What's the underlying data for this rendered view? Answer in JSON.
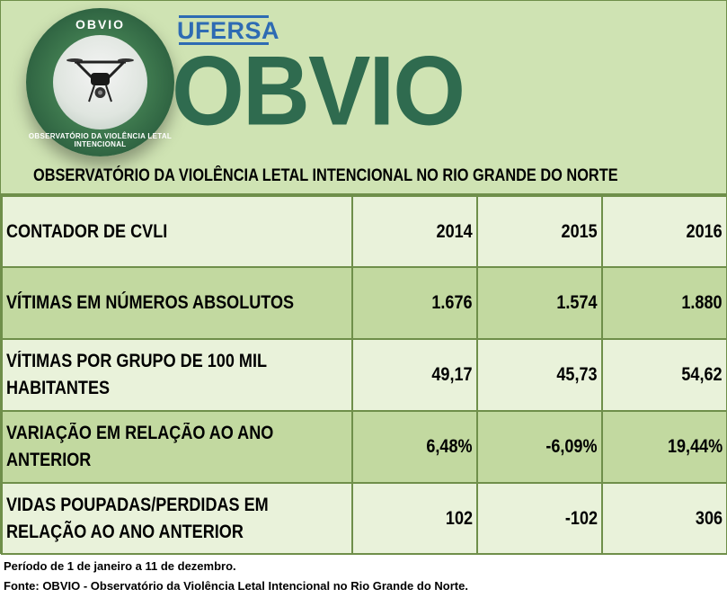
{
  "header": {
    "seal_top": "OBVIO",
    "seal_text": "OBSERVATÓRIO DA VIOLÊNCIA LETAL INTENCIONAL",
    "university": "UFERSA",
    "brand": "OBVIO",
    "subtitle": "OBSERVATÓRIO DA VIOLÊNCIA LETAL INTENCIONAL NO RIO GRANDE DO NORTE",
    "colors": {
      "background": "#cfe3b3",
      "brand": "#2f6b4f",
      "university": "#2e6bb3",
      "border": "#6f8f4a"
    }
  },
  "table": {
    "header": {
      "label": "CONTADOR DE CVLI",
      "years": [
        "2014",
        "2015",
        "2016"
      ]
    },
    "rows": [
      {
        "label": "VÍTIMAS EM NÚMEROS ABSOLUTOS",
        "values": [
          "1.676",
          "1.574",
          "1.880"
        ]
      },
      {
        "label": "VÍTIMAS POR GRUPO DE 100 MIL HABITANTES",
        "values": [
          "49,17",
          "45,73",
          "54,62"
        ]
      },
      {
        "label": "VARIAÇÃO EM RELAÇÃO AO ANO ANTERIOR",
        "values": [
          "6,48%",
          "-6,09%",
          "19,44%"
        ]
      },
      {
        "label": "VIDAS POUPADAS/PERDIDAS EM RELAÇÃO AO ANO ANTERIOR",
        "values": [
          "102",
          "-102",
          "306"
        ]
      }
    ]
  },
  "footer": {
    "period": "Período de 1 de janeiro a 11 de dezembro.",
    "source": "Fonte: OBVIO - Observatório da Violência Letal Intencional no Rio Grande do Norte."
  }
}
